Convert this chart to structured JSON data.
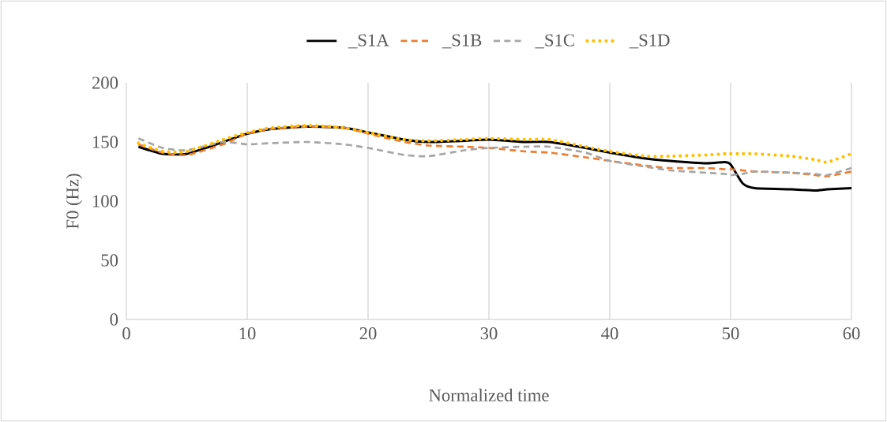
{
  "chart_data": {
    "type": "line",
    "xlabel": "Normalized time",
    "ylabel": "F0 (Hz)",
    "x": [
      1,
      3,
      5,
      8,
      10,
      12,
      15,
      18,
      20,
      23,
      25,
      28,
      30,
      33,
      35,
      38,
      40,
      43,
      45,
      48,
      49.5,
      50,
      51,
      52,
      55,
      57,
      58,
      60
    ],
    "series": [
      {
        "name": "_S1A",
        "color": "#000000",
        "line_style": "solid",
        "values": [
          146,
          140,
          140,
          150,
          157,
          161,
          163,
          162,
          158,
          152,
          150,
          151,
          152,
          150,
          150,
          145,
          141,
          136,
          134,
          132,
          133,
          131,
          115,
          111,
          110,
          109,
          110,
          111
        ]
      },
      {
        "name": "_S1B",
        "color": "#ed7d31",
        "line_style": "dashed",
        "values": [
          148,
          141,
          139,
          148,
          157,
          161,
          163,
          162,
          157,
          150,
          147,
          146,
          145,
          142,
          141,
          137,
          134,
          130,
          128,
          128,
          127,
          127,
          126,
          125,
          124,
          122,
          121,
          125
        ]
      },
      {
        "name": "_S1C",
        "color": "#a5a5a5",
        "line_style": "dashed",
        "values": [
          153,
          145,
          143,
          150,
          148,
          149,
          150,
          148,
          145,
          139,
          138,
          143,
          145,
          146,
          146,
          141,
          134,
          129,
          126,
          124,
          123,
          122,
          123,
          125,
          124,
          123,
          122,
          128
        ]
      },
      {
        "name": "_S1D",
        "color": "#ffc000",
        "line_style": "dotted",
        "values": [
          149,
          142,
          142,
          152,
          158,
          162,
          164,
          162,
          158,
          152,
          151,
          152,
          153,
          152,
          152,
          146,
          142,
          138,
          138,
          139,
          140,
          140,
          140,
          140,
          138,
          135,
          133,
          140
        ]
      }
    ],
    "xlim": [
      0,
      60
    ],
    "xticks": [
      0,
      10,
      20,
      30,
      40,
      50,
      60
    ],
    "ylim": [
      0,
      200
    ],
    "yticks": [
      0,
      50,
      100,
      150,
      200
    ],
    "grid": "x",
    "legend": "top"
  }
}
